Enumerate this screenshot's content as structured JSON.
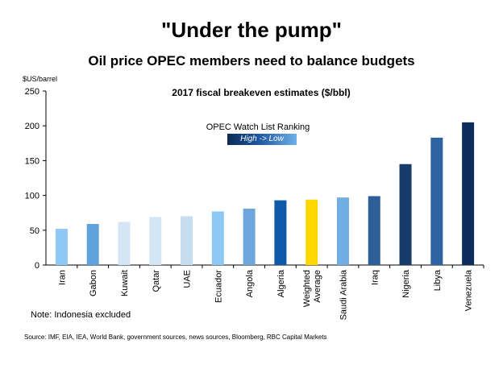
{
  "header": {
    "title": "\"Under the pump\"",
    "subtitle": "Oil price OPEC members need to balance budgets"
  },
  "unit_label": "$US/barrel",
  "legend": {
    "label": "OPEC Watch List Ranking",
    "bar_text": "High -> Low"
  },
  "footer": {
    "note": "Note: Indonesia excluded",
    "source": "Source: IMF, EIA, IEA, World Bank, government sources, news sources, Bloomberg, RBC Capital Markets"
  },
  "colors": {
    "highlight": "#ffd700",
    "axis": "#000000"
  },
  "chart_data": {
    "type": "bar",
    "title": "2017 fiscal breakeven estimates ($/bbl)",
    "ylabel": "$US/barrel",
    "ylim": [
      0,
      250
    ],
    "yticks": [
      0,
      50,
      100,
      150,
      200,
      250
    ],
    "grid": false,
    "categories": [
      "Iran",
      "Gabon",
      "Kuwait",
      "Qatar",
      "UAE",
      "Ecuador",
      "Angola",
      "Algeria",
      "Weighted Average",
      "Saudi Arabia",
      "Iraq",
      "Nigeria",
      "Libya",
      "Venezuela"
    ],
    "values": [
      52,
      59,
      62,
      69,
      70,
      77,
      81,
      93,
      94,
      97,
      99,
      145,
      183,
      205
    ],
    "bar_colors": [
      "#8ec8f5",
      "#5fa3dc",
      "#d4e6f5",
      "#d4e6f5",
      "#c6ddef",
      "#8ec8f5",
      "#6ba7da",
      "#0e5aa8",
      "#ffd700",
      "#6fade3",
      "#2f5f97",
      "#173b6b",
      "#2d63a0",
      "#0d2e5c"
    ]
  }
}
